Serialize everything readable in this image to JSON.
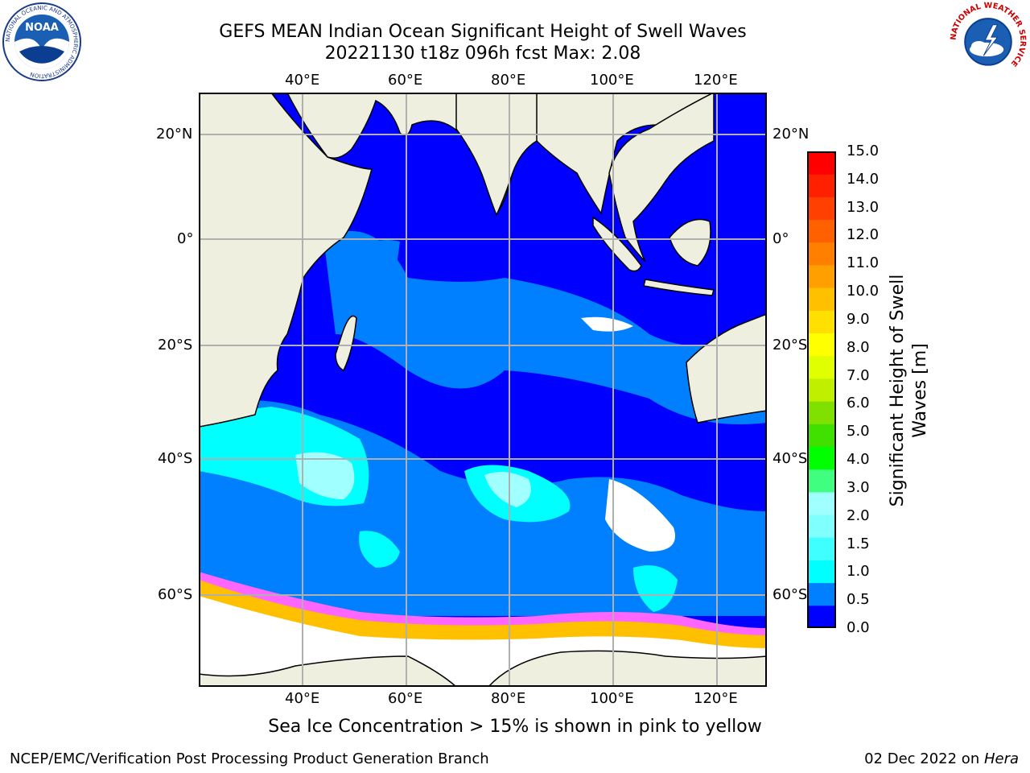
{
  "title": {
    "line1": "GEFS MEAN Indian Ocean Significant Height of Swell Waves",
    "line2": "20221130 t18z 096h fcst   Max: 2.08"
  },
  "map": {
    "lon_labels": [
      "40°E",
      "60°E",
      "80°E",
      "100°E",
      "120°E"
    ],
    "lat_labels": [
      "20°N",
      "0°",
      "20°S",
      "40°S",
      "60°S"
    ],
    "lon_range": [
      20,
      129
    ],
    "lat_range": [
      -72,
      28
    ],
    "land_color": "#efefdf",
    "ocean_low_color": "#0000ff"
  },
  "colorbar": {
    "title_line1": "Significant Height of Swell",
    "title_line2": "Waves [m]",
    "ticks": [
      "15.0",
      "14.0",
      "13.0",
      "12.0",
      "11.0",
      "10.0",
      "9.0",
      "8.0",
      "7.0",
      "6.0",
      "5.0",
      "4.0",
      "3.0",
      "2.0",
      "1.5",
      "1.0",
      "0.5",
      "0.0"
    ],
    "colors": [
      "#0000ff",
      "#0080ff",
      "#00ffff",
      "#40ffff",
      "#80ffff",
      "#a0ffff",
      "#40ff80",
      "#00ff00",
      "#40e000",
      "#80e000",
      "#c0f000",
      "#e0ff00",
      "#ffff00",
      "#ffe000",
      "#ffc000",
      "#ffa000",
      "#ff8000",
      "#ff6000",
      "#ff4000",
      "#ff2000",
      "#ff0000"
    ]
  },
  "caption": "Sea Ice Concentration > 15% is shown in pink to yellow",
  "footer": {
    "left": "NCEP/EMC/Verification Post Processing Product Generation Branch",
    "right_date": "02 Dec 2022 on ",
    "right_host": "Hera"
  },
  "logos": {
    "noaa_text": "NOAA",
    "noaa_ring": "NATIONAL OCEANIC AND ATMOSPHERIC ADMINISTRATION",
    "nws_ring": "NATIONAL WEATHER SERVICE"
  }
}
